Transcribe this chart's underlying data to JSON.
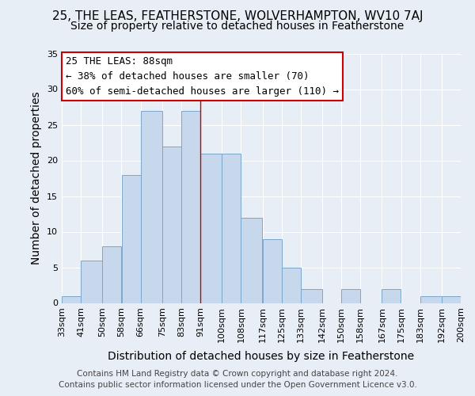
{
  "title": "25, THE LEAS, FEATHERSTONE, WOLVERHAMPTON, WV10 7AJ",
  "subtitle": "Size of property relative to detached houses in Featherstone",
  "xlabel": "Distribution of detached houses by size in Featherstone",
  "ylabel": "Number of detached properties",
  "bin_labels": [
    "33sqm",
    "41sqm",
    "50sqm",
    "58sqm",
    "66sqm",
    "75sqm",
    "83sqm",
    "91sqm",
    "100sqm",
    "108sqm",
    "117sqm",
    "125sqm",
    "133sqm",
    "142sqm",
    "150sqm",
    "158sqm",
    "167sqm",
    "175sqm",
    "183sqm",
    "192sqm",
    "200sqm"
  ],
  "bar_values": [
    1,
    6,
    8,
    18,
    27,
    22,
    27,
    21,
    21,
    12,
    9,
    5,
    2,
    0,
    2,
    0,
    2,
    0,
    1,
    1
  ],
  "bar_color": "#c8d8ec",
  "bar_edge_color": "#7ba7cc",
  "ylim": [
    0,
    35
  ],
  "yticks": [
    0,
    5,
    10,
    15,
    20,
    25,
    30,
    35
  ],
  "annotation_title": "25 THE LEAS: 88sqm",
  "annotation_line1": "← 38% of detached houses are smaller (70)",
  "annotation_line2": "60% of semi-detached houses are larger (110) →",
  "annotation_box_color": "#ffffff",
  "annotation_box_edge": "#cc0000",
  "property_line_x": 91,
  "footer1": "Contains HM Land Registry data © Crown copyright and database right 2024.",
  "footer2": "Contains public sector information licensed under the Open Government Licence v3.0.",
  "fig_background_color": "#e8eef5",
  "plot_background_color": "#e8eef5",
  "grid_color": "#ffffff",
  "title_fontsize": 11,
  "subtitle_fontsize": 10,
  "axis_label_fontsize": 10,
  "tick_fontsize": 8,
  "annotation_fontsize": 9,
  "footer_fontsize": 7.5
}
